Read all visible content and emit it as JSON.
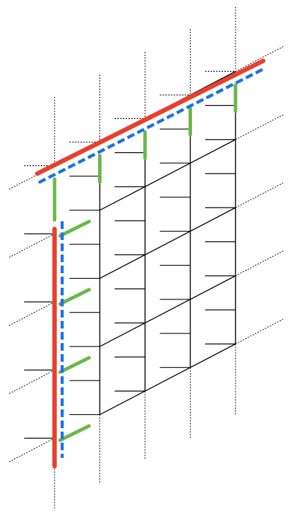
{
  "diagram": {
    "kind": "skewed-grid",
    "columns": 5,
    "rows": 4,
    "colors": {
      "grid": "#000000",
      "edge_highlight": "#e84030",
      "edge_dashed": "#1a73e8",
      "connector": "#6ab74a",
      "background": "#ffffff"
    }
  }
}
